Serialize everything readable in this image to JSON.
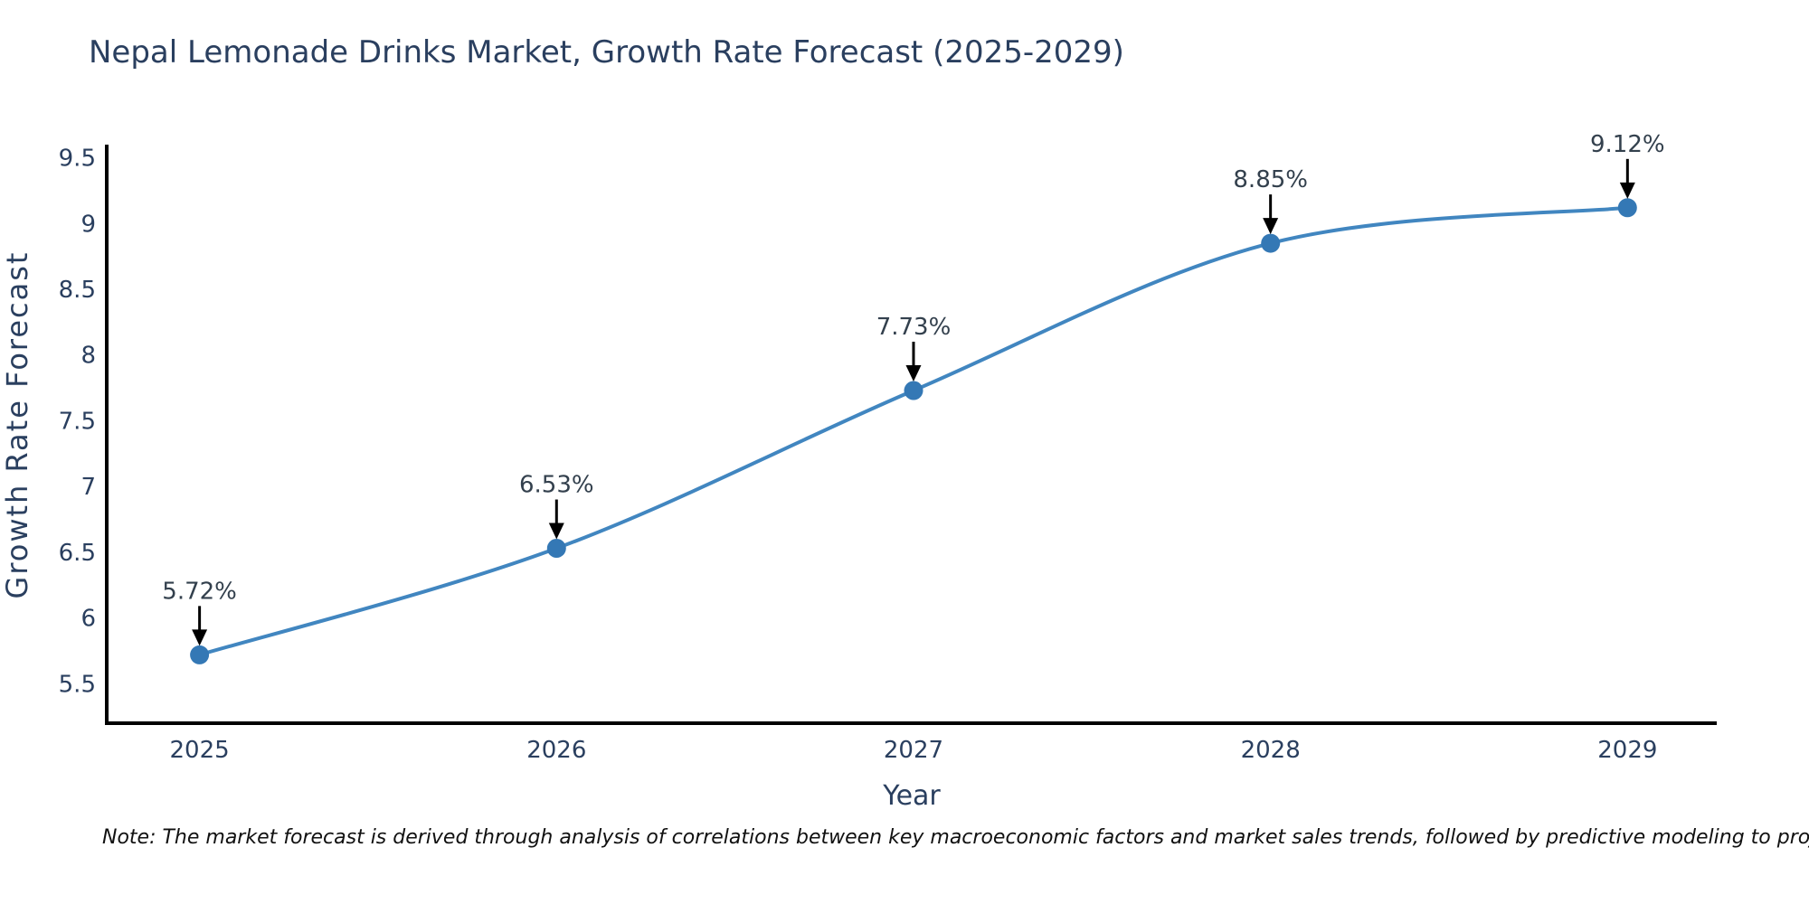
{
  "title": "Nepal Lemonade Drinks Market, Growth Rate Forecast (2025-2029)",
  "footnote": "Note: The market forecast is derived through analysis of correlations between key macroeconomic factors and market sales trends, followed by predictive modeling to project future sales",
  "chart_data": {
    "type": "line",
    "title": "Nepal Lemonade Drinks Market, Growth Rate Forecast (2025-2029)",
    "xlabel": "Year",
    "ylabel": "Growth Rate Forecast",
    "x": [
      2025,
      2026,
      2027,
      2028,
      2029
    ],
    "series": [
      {
        "name": "Growth Rate Forecast",
        "values": [
          5.72,
          6.53,
          7.73,
          8.85,
          9.12
        ],
        "point_labels": [
          "5.72%",
          "6.53%",
          "7.73%",
          "8.85%",
          "9.12%"
        ]
      }
    ],
    "line_shape": "spline",
    "markers": true,
    "grid": false,
    "legend": false,
    "xticks": {
      "values": [
        2025,
        2026,
        2027,
        2028,
        2029
      ],
      "labels": [
        "2025",
        "2026",
        "2027",
        "2028",
        "2029"
      ]
    },
    "yticks": {
      "values": [
        5.5,
        6,
        6.5,
        7,
        7.5,
        8,
        8.5,
        9,
        9.5
      ],
      "labels": [
        "5.5",
        "6",
        "6.5",
        "7",
        "7.5",
        "8",
        "8.5",
        "9",
        "9.5"
      ]
    },
    "xlim": [
      2024.74,
      2029.25
    ],
    "ylim": [
      5.2,
      9.6
    ],
    "colors": {
      "line": "#4186c0",
      "marker": "#3478b5",
      "axis_line": "#000000",
      "tick_text": "#2a3f5f",
      "title_text": "#2a3f5f",
      "axis_title_text": "#2a3f5f",
      "annotation_text": "#33404d",
      "arrow": "#000000",
      "note_text": "#111111",
      "background": "#ffffff"
    }
  }
}
